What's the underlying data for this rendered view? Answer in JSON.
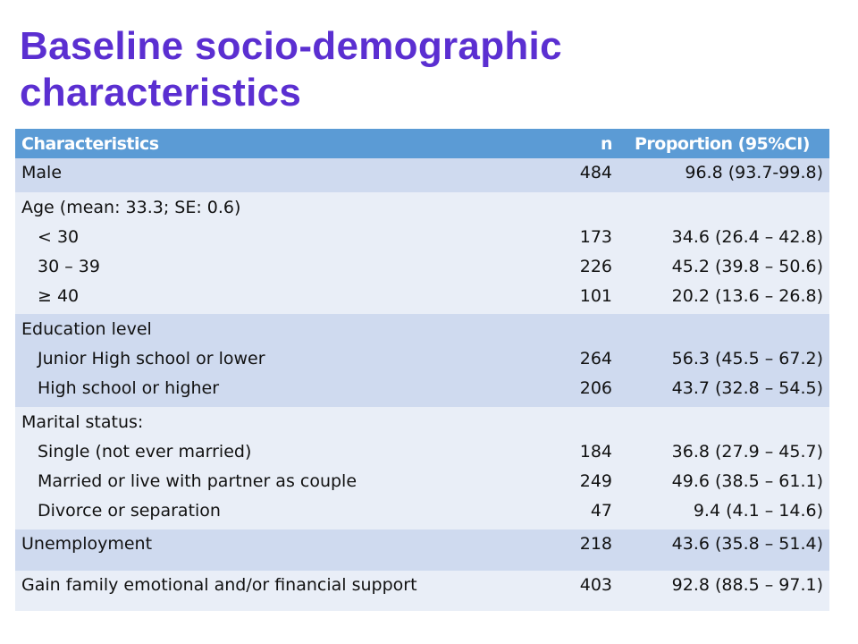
{
  "title": "Baseline socio-demographic characteristics",
  "table": {
    "headers": {
      "characteristics": "Characteristics",
      "n": "n",
      "proportion": "Proportion (95%CI)"
    },
    "male": {
      "label": "Male",
      "n": "484",
      "proportion": "96.8 (93.7-99.8)"
    },
    "age": {
      "label": "Age (mean: 33.3; SE: 0.6)",
      "rows": [
        {
          "label": "< 30",
          "n": "173",
          "proportion": "34.6  (26.4 – 42.8)"
        },
        {
          "label": "30 – 39",
          "n": "226",
          "proportion": "45.2 (39.8 – 50.6)"
        },
        {
          "label": "≥ 40",
          "n": "101",
          "proportion": "20.2 (13.6 – 26.8)"
        }
      ]
    },
    "education": {
      "label": "Education level",
      "rows": [
        {
          "label": "Junior High school or lower",
          "n": "264",
          "proportion": "56.3 (45.5 – 67.2)"
        },
        {
          "label": "High school or higher",
          "n": "206",
          "proportion": "43.7 (32.8 – 54.5)"
        }
      ]
    },
    "marital": {
      "label": "Marital status:",
      "rows": [
        {
          "label": "Single (not ever married)",
          "n": "184",
          "proportion": "36.8 (27.9 – 45.7)"
        },
        {
          "label": "Married or live with partner as couple",
          "n": "249",
          "proportion": "49.6 (38.5 – 61.1)"
        },
        {
          "label": "Divorce or separation",
          "n": "47",
          "proportion": "9.4 (4.1 – 14.6)"
        }
      ]
    },
    "unemployment": {
      "label": "Unemployment",
      "n": "218",
      "proportion": "43.6 (35.8 – 51.4)"
    },
    "support": {
      "label": "Gain family emotional and/or financial support",
      "n": "403",
      "proportion": "92.8 (88.5 – 97.1)"
    }
  }
}
